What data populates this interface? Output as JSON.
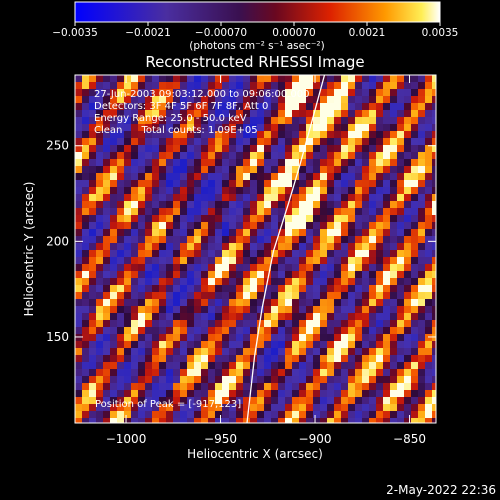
{
  "chart_data": {
    "type": "heatmap",
    "title": "Reconstructed RHESSI Image",
    "xlabel": "Heliocentric X (arcsec)",
    "ylabel": "Heliocentric Y (arcsec)",
    "xlim": [
      -1027,
      -836
    ],
    "ylim": [
      105,
      287
    ],
    "x_ticks": [
      -1000,
      -950,
      -900,
      -850
    ],
    "x_tick_labels": [
      "−1000",
      "−950",
      "−900",
      "−850"
    ],
    "y_ticks": [
      150,
      200,
      250
    ],
    "y_tick_labels": [
      "150",
      "200",
      "250"
    ],
    "colorbar": {
      "range": [
        -0.0035,
        0.0035
      ],
      "ticks": [
        -0.0035,
        -0.0021,
        -0.0007,
        0.0007,
        0.0021,
        0.0035
      ],
      "tick_labels": [
        "−0.0035",
        "−0.0021",
        "−0.00070",
        "0.00070",
        "0.0021",
        "0.0035"
      ],
      "unit_label": "(photons cm⁻² s⁻¹ asec⁻²)",
      "colormap": "blue-purple-red-yellow-white"
    },
    "annotations": [
      "27-Jun-2003 09:03:12.000 to 09:06:00.000",
      "Detectors: 3F 4F 5F 6F 7F 8F, Att 0",
      "Energy Range: 25.0 - 50.0 keV",
      "Clean      Total counts: 1.09E+05"
    ],
    "peak_label": "Position of Peak = [-917,123]",
    "peak_position": [
      -917,
      123
    ],
    "limb_curve": {
      "x": [
        -936,
        -932,
        -928,
        -922,
        -914,
        -908,
        -901,
        -895
      ],
      "y": [
        105,
        140,
        165,
        195,
        220,
        240,
        265,
        287
      ]
    },
    "background_color": "#000000",
    "limb_color": "#ffffff"
  },
  "footer_timestamp": "2-May-2022 22:36"
}
